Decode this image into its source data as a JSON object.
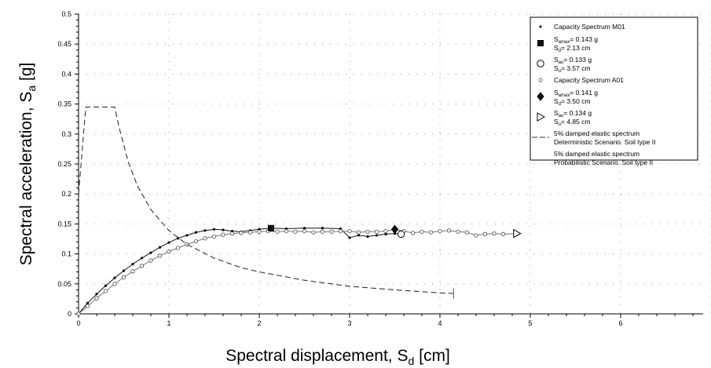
{
  "chart_data": {
    "type": "line",
    "title": "",
    "xlabel": {
      "main": "Spectral displacement, S",
      "sub": "d",
      "unit": " [cm]"
    },
    "ylabel": {
      "main": "Spectral acceleration, S",
      "sub": "a",
      "unit": " [g]"
    },
    "xlim": [
      0,
      7
    ],
    "ylim": [
      0,
      0.5
    ],
    "x_ticks": [
      "0",
      "1",
      "2",
      "3",
      "4",
      "5",
      "6"
    ],
    "y_ticks": [
      "0",
      "0.05",
      "0.1",
      "0.15",
      "0.2",
      "0.25",
      "0.3",
      "0.35",
      "0.4",
      "0.45",
      "0.5"
    ],
    "grid": true,
    "legend_position": "top-right",
    "series": [
      {
        "name": "Capacity Spectrum M01",
        "style": "solid-dot",
        "x": [
          0,
          0.1,
          0.2,
          0.3,
          0.4,
          0.5,
          0.6,
          0.7,
          0.8,
          0.9,
          1.0,
          1.1,
          1.2,
          1.3,
          1.4,
          1.5,
          1.6,
          1.7,
          1.8,
          1.9,
          2.0,
          2.13,
          2.3,
          2.5,
          2.7,
          2.9,
          3.0,
          3.1,
          3.2,
          3.3,
          3.4,
          3.5,
          3.57
        ],
        "y": [
          0,
          0.018,
          0.033,
          0.047,
          0.06,
          0.072,
          0.083,
          0.093,
          0.102,
          0.111,
          0.119,
          0.126,
          0.131,
          0.136,
          0.139,
          0.141,
          0.14,
          0.138,
          0.137,
          0.139,
          0.141,
          0.143,
          0.142,
          0.143,
          0.143,
          0.142,
          0.127,
          0.131,
          0.129,
          0.131,
          0.133,
          0.134,
          0.133
        ]
      },
      {
        "name": "Capacity Spectrum A01",
        "style": "open-circle",
        "x": [
          0,
          0.1,
          0.2,
          0.3,
          0.4,
          0.5,
          0.6,
          0.7,
          0.8,
          0.9,
          1.0,
          1.1,
          1.2,
          1.3,
          1.4,
          1.5,
          1.6,
          1.7,
          1.8,
          1.9,
          2.0,
          2.1,
          2.2,
          2.3,
          2.4,
          2.5,
          2.6,
          2.7,
          2.8,
          2.9,
          3.0,
          3.1,
          3.2,
          3.3,
          3.4,
          3.5,
          3.6,
          3.7,
          3.8,
          3.9,
          4.0,
          4.1,
          4.2,
          4.3,
          4.4,
          4.5,
          4.6,
          4.7,
          4.85
        ],
        "y": [
          0,
          0.013,
          0.026,
          0.038,
          0.05,
          0.061,
          0.071,
          0.08,
          0.089,
          0.097,
          0.104,
          0.11,
          0.116,
          0.121,
          0.126,
          0.129,
          0.132,
          0.134,
          0.135,
          0.136,
          0.137,
          0.138,
          0.137,
          0.138,
          0.137,
          0.138,
          0.136,
          0.137,
          0.137,
          0.138,
          0.138,
          0.136,
          0.137,
          0.137,
          0.138,
          0.141,
          0.138,
          0.135,
          0.137,
          0.136,
          0.138,
          0.139,
          0.137,
          0.136,
          0.131,
          0.133,
          0.134,
          0.133,
          0.134
        ]
      },
      {
        "name": "5% damped elastic spectrum Deterministic Scenario. Soil type II",
        "style": "dashed",
        "x": [
          0,
          0.08,
          0.15,
          0.2,
          0.3,
          0.4,
          0.45,
          0.55,
          0.65,
          0.8,
          1.0,
          1.2,
          1.5,
          1.8,
          2.0,
          2.5,
          3.0,
          3.5,
          4.0,
          4.15
        ],
        "y": [
          0.2,
          0.345,
          0.345,
          0.345,
          0.345,
          0.345,
          0.31,
          0.253,
          0.214,
          0.174,
          0.139,
          0.116,
          0.093,
          0.077,
          0.07,
          0.056,
          0.046,
          0.04,
          0.035,
          0.034
        ]
      }
    ],
    "markers": [
      {
        "type": "filled-square",
        "x": 2.13,
        "y": 0.143
      },
      {
        "type": "open-circle-large",
        "x": 3.57,
        "y": 0.133
      },
      {
        "type": "filled-diamond",
        "x": 3.5,
        "y": 0.141
      },
      {
        "type": "open-triangle",
        "x": 4.85,
        "y": 0.134
      }
    ],
    "legend": [
      {
        "symbol": "small-dot",
        "lines": [
          {
            "t": "Capacity Spectrum M01"
          }
        ]
      },
      {
        "symbol": "filled-square",
        "lines": [
          {
            "t": "S",
            "sub": "amax",
            "after": "= 0.143 g"
          },
          {
            "t": "S",
            "sub": "d",
            "after": "= 2.13 cm"
          }
        ]
      },
      {
        "symbol": "open-circle-large",
        "lines": [
          {
            "t": "S",
            "sub": "au",
            "after": "= 0.133 g"
          },
          {
            "t": "S",
            "sub": "u",
            "after": "= 3.57 cm"
          }
        ]
      },
      {
        "symbol": "open-circle",
        "lines": [
          {
            "t": "Capacity Spectrum A01"
          }
        ]
      },
      {
        "symbol": "filled-diamond",
        "lines": [
          {
            "t": "S",
            "sub": "amax",
            "after": "= 0.141 g"
          },
          {
            "t": "S",
            "sub": "d",
            "after": "= 3.50 cm"
          }
        ]
      },
      {
        "symbol": "open-triangle",
        "lines": [
          {
            "t": "S",
            "sub": "au",
            "after": "= 0.134 g"
          },
          {
            "t": "S",
            "sub": "u",
            "after": "= 4.85 cm"
          }
        ]
      },
      {
        "symbol": "dashed",
        "lines": [
          {
            "t": "5% damped elastic spectrum"
          },
          {
            "t": "Deterministic Scenario. Soil type II"
          }
        ]
      },
      {
        "symbol": "none",
        "lines": [
          {
            "t": "5% damped elastic spectrum"
          },
          {
            "t": "Probabilistic Scenario. Soil type II"
          }
        ]
      }
    ]
  }
}
